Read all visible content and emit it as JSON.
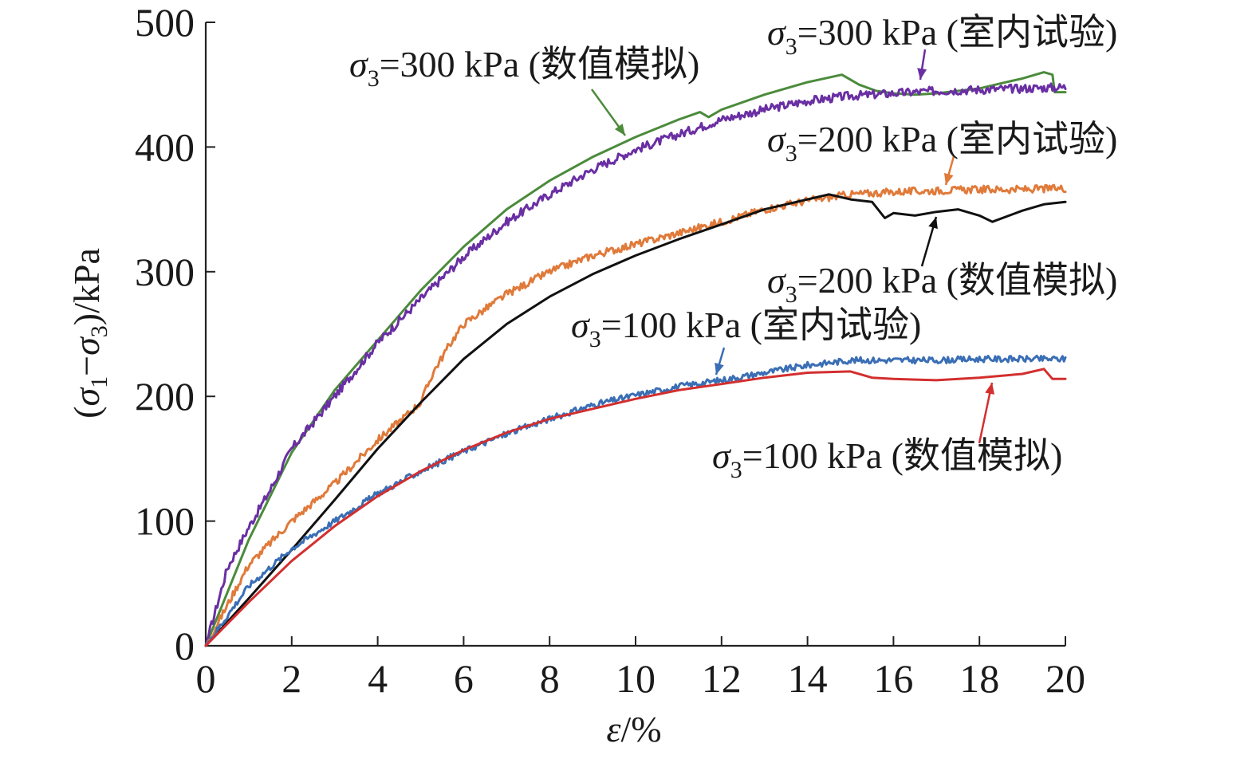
{
  "chart_data": {
    "type": "line",
    "xlabel": "ε/%",
    "ylabel": "(σ1−σ3)/kPa",
    "xlim": [
      0,
      20
    ],
    "ylim": [
      0,
      500
    ],
    "xticks": [
      "0",
      "2",
      "4",
      "6",
      "8",
      "10",
      "12",
      "14",
      "16",
      "18",
      "20"
    ],
    "yticks": [
      "0",
      "100",
      "200",
      "300",
      "400",
      "500"
    ],
    "grid": false,
    "legend": "none",
    "series": [
      {
        "name": "σ3=300 kPa (数值模拟)",
        "color": "#4b8b3b",
        "x": [
          0,
          1,
          2,
          3,
          4,
          5,
          6,
          7,
          8,
          9,
          10,
          11,
          11.5,
          11.7,
          12,
          13,
          14,
          14.8,
          15.2,
          15.6,
          16,
          16.5,
          17,
          17.5,
          18,
          18.5,
          19,
          19.5,
          19.7,
          19.75,
          20
        ],
        "y": [
          0,
          85,
          155,
          205,
          245,
          285,
          320,
          350,
          373,
          392,
          408,
          422,
          428,
          424,
          430,
          442,
          452,
          458,
          450,
          445,
          443,
          442,
          443,
          445,
          447,
          451,
          455,
          460,
          458,
          444,
          444
        ]
      },
      {
        "name": "σ3=300 kPa (室内试验)",
        "color": "#6a2fa3",
        "noise": 3.5,
        "x": [
          0,
          0.5,
          1,
          1.5,
          2,
          3,
          4,
          5,
          6,
          7,
          8,
          9,
          10,
          11,
          12,
          13,
          14,
          15,
          16,
          17,
          18,
          19,
          20
        ],
        "y": [
          0,
          62,
          95,
          125,
          158,
          200,
          243,
          278,
          312,
          340,
          362,
          382,
          398,
          410,
          422,
          430,
          437,
          441,
          443,
          445,
          446,
          447,
          448
        ]
      },
      {
        "name": "σ3=200 kPa (室内试验)",
        "color": "#e07a3a",
        "noise": 3,
        "x": [
          0,
          1,
          2,
          3,
          4,
          4.5,
          5,
          5.3,
          5.7,
          6,
          7,
          8,
          9,
          10,
          11,
          12,
          13,
          14,
          15,
          16,
          17,
          18,
          19,
          20
        ],
        "y": [
          0,
          65,
          100,
          130,
          165,
          180,
          195,
          220,
          243,
          258,
          282,
          300,
          313,
          322,
          331,
          340,
          350,
          357,
          362,
          364,
          365,
          366,
          366,
          367
        ]
      },
      {
        "name": "σ3=200 kPa (数值模拟)",
        "color": "#111111",
        "x": [
          0,
          1,
          2,
          3,
          4,
          5,
          6,
          7,
          8,
          9,
          10,
          11,
          12,
          13,
          14,
          14.5,
          15,
          15.5,
          15.8,
          16,
          16.5,
          17,
          17.5,
          18,
          18.3,
          19,
          19.5,
          20
        ],
        "y": [
          0,
          38,
          77,
          117,
          158,
          195,
          230,
          258,
          280,
          298,
          313,
          326,
          338,
          350,
          358,
          362,
          358,
          356,
          343,
          347,
          345,
          348,
          350,
          345,
          340,
          349,
          354,
          356
        ]
      },
      {
        "name": "σ3=100 kPa (室内试验)",
        "color": "#3a6eb5",
        "noise": 2.5,
        "x": [
          0,
          1,
          2,
          3,
          4,
          5,
          6,
          7,
          8,
          9,
          10,
          11,
          12,
          13,
          14,
          15,
          16,
          17,
          18,
          19,
          20
        ],
        "y": [
          0,
          48,
          78,
          100,
          122,
          140,
          156,
          170,
          182,
          193,
          201,
          208,
          213,
          219,
          225,
          229,
          229,
          229,
          230,
          230,
          230
        ]
      },
      {
        "name": "σ3=100 kPa (数值模拟)",
        "color": "#d32f2f",
        "x": [
          0,
          1,
          2,
          3,
          4,
          5,
          6,
          7,
          8,
          9,
          10,
          11,
          12,
          13,
          14,
          15,
          15.5,
          16,
          17,
          18,
          19,
          19.5,
          19.7,
          20
        ],
        "y": [
          0,
          35,
          68,
          96,
          120,
          140,
          157,
          171,
          182,
          190,
          198,
          205,
          210,
          215,
          219,
          220,
          215,
          214,
          213,
          215,
          218,
          222,
          214,
          214
        ]
      }
    ]
  },
  "annotations": [
    {
      "sigma": "σ",
      "sub": "3",
      "text": "=300 kPa (室内试验)"
    },
    {
      "sigma": "σ",
      "sub": "3",
      "text": "=300 kPa (数值模拟)"
    },
    {
      "sigma": "σ",
      "sub": "3",
      "text": "=200 kPa (室内试验)"
    },
    {
      "sigma": "σ",
      "sub": "3",
      "text": "=200 kPa (数值模拟)"
    },
    {
      "sigma": "σ",
      "sub": "3",
      "text": "=100 kPa (室内试验)"
    },
    {
      "sigma": "σ",
      "sub": "3",
      "text": "=100 kPa (数值模拟)"
    }
  ],
  "ylabel_parts": {
    "open": "(",
    "s1": "σ",
    "sub1": "1",
    "minus": "−",
    "s2": "σ",
    "sub2": "3",
    "close": ")/kPa"
  },
  "xlabel_parts": {
    "eps": "ε",
    "rest": "/%"
  }
}
